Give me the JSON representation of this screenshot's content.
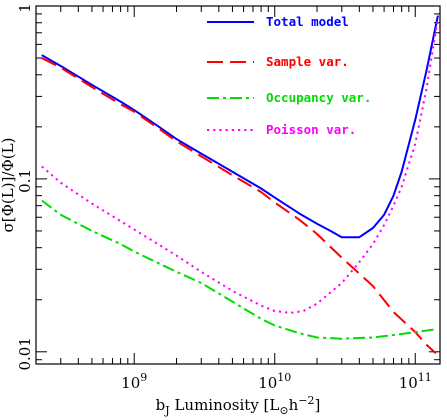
{
  "chart_data": {
    "type": "line",
    "xscale": "log",
    "yscale": "log",
    "xlim": [
      200000000.0,
      150000000000.0
    ],
    "ylim": [
      0.0085,
      1.0
    ],
    "grid": false,
    "legend_position": "top-right",
    "xlabel_parts": {
      "main": "b",
      "sub": "J",
      "text": " Luminosity [L",
      "sun": "⊙",
      "unit": "h",
      "exp": "−2",
      "close": "]"
    },
    "ylabel": "σ[Φ(L)]/Φ(L)",
    "x_ticks": [
      {
        "value": 1000000000.0,
        "base": "10",
        "exp": "9"
      },
      {
        "value": 10000000000.0,
        "base": "10",
        "exp": "10"
      },
      {
        "value": 100000000000.0,
        "base": "10",
        "exp": "11"
      }
    ],
    "y_ticks": [
      {
        "value": 0.01,
        "label": "0.01"
      },
      {
        "value": 0.1,
        "label": "0.1"
      },
      {
        "value": 1,
        "label": "1"
      }
    ],
    "series": [
      {
        "name": "Total model",
        "color": "#0000ff",
        "dash": "solid",
        "x": [
          220000000.0,
          300000000.0,
          500000000.0,
          800000000.0,
          1000000000.0,
          1500000000.0,
          2000000000.0,
          3000000000.0,
          5000000000.0,
          8000000000.0,
          10000000000.0,
          15000000000.0,
          20000000000.0,
          25000000000.0,
          30000000000.0,
          40000000000.0,
          50000000000.0,
          60000000000.0,
          70000000000.0,
          80000000000.0,
          100000000000.0,
          120000000000.0,
          145000000000.0
        ],
        "y": [
          0.52,
          0.45,
          0.35,
          0.28,
          0.25,
          0.2,
          0.17,
          0.14,
          0.11,
          0.088,
          0.078,
          0.063,
          0.055,
          0.05,
          0.046,
          0.046,
          0.052,
          0.062,
          0.08,
          0.11,
          0.22,
          0.42,
          0.88
        ]
      },
      {
        "name": "Sample var.",
        "color": "#ff0000",
        "dash": "long-dash",
        "x": [
          220000000.0,
          300000000.0,
          500000000.0,
          800000000.0,
          1000000000.0,
          1500000000.0,
          2000000000.0,
          3000000000.0,
          5000000000.0,
          8000000000.0,
          10000000000.0,
          15000000000.0,
          20000000000.0,
          30000000000.0,
          50000000000.0,
          70000000000.0,
          100000000000.0,
          120000000000.0,
          140000000000.0
        ],
        "y": [
          0.5,
          0.44,
          0.34,
          0.27,
          0.245,
          0.195,
          0.165,
          0.135,
          0.105,
          0.084,
          0.073,
          0.058,
          0.048,
          0.035,
          0.024,
          0.017,
          0.013,
          0.011,
          0.0098
        ]
      },
      {
        "name": "Occupancy var.",
        "color": "#00dd00",
        "dash": "dash-dot",
        "x": [
          220000000.0,
          300000000.0,
          500000000.0,
          800000000.0,
          1000000000.0,
          2000000000.0,
          3000000000.0,
          5000000000.0,
          8000000000.0,
          10000000000.0,
          15000000000.0,
          20000000000.0,
          30000000000.0,
          50000000000.0,
          70000000000.0,
          100000000000.0,
          140000000000.0
        ],
        "y": [
          0.075,
          0.062,
          0.05,
          0.042,
          0.038,
          0.029,
          0.025,
          0.0195,
          0.0155,
          0.0142,
          0.0128,
          0.0121,
          0.0119,
          0.0121,
          0.0125,
          0.013,
          0.0135
        ]
      },
      {
        "name": "Poisson var.",
        "color": "#ff00ff",
        "dash": "dotted",
        "x": [
          220000000.0,
          300000000.0,
          500000000.0,
          800000000.0,
          1000000000.0,
          2000000000.0,
          3000000000.0,
          5000000000.0,
          8000000000.0,
          10000000000.0,
          13000000000.0,
          16000000000.0,
          20000000000.0,
          30000000000.0,
          40000000000.0,
          50000000000.0,
          60000000000.0,
          70000000000.0,
          80000000000.0,
          100000000000.0,
          120000000000.0,
          145000000000.0
        ],
        "y": [
          0.118,
          0.095,
          0.072,
          0.057,
          0.051,
          0.036,
          0.029,
          0.0225,
          0.0185,
          0.0172,
          0.0168,
          0.0172,
          0.019,
          0.025,
          0.033,
          0.042,
          0.054,
          0.07,
          0.09,
          0.16,
          0.33,
          0.85
        ]
      }
    ]
  }
}
